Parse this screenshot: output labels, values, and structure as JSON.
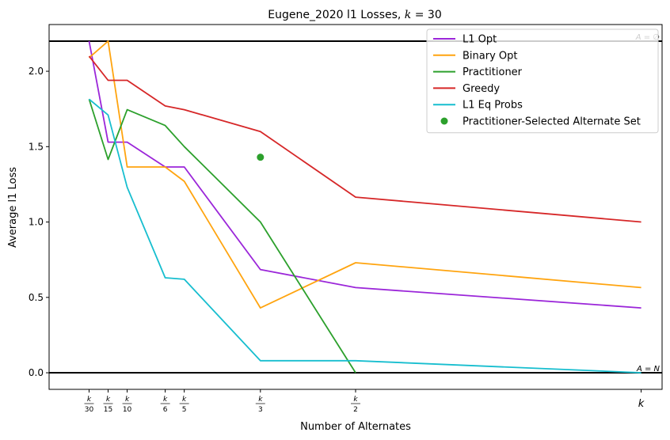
{
  "chart_data": {
    "type": "line",
    "title": "Eugene_2020 l1 Losses, k = 30",
    "title_parts": {
      "prefix": "Eugene_2020 l1 Losses, ",
      "k_symbol": "k",
      "suffix": " = 30"
    },
    "xlabel": "Number of Alternates",
    "ylabel": "Average l1 Loss",
    "xlim": [
      -1.1,
      31.1
    ],
    "ylim": [
      -0.11,
      2.31
    ],
    "x": [
      1,
      2,
      3,
      5,
      6,
      10,
      15,
      30
    ],
    "x_tick_labels": [
      {
        "x": 1,
        "num": "k",
        "den": "30"
      },
      {
        "x": 2,
        "num": "k",
        "den": "15"
      },
      {
        "x": 3,
        "num": "k",
        "den": "10"
      },
      {
        "x": 5,
        "num": "k",
        "den": "6"
      },
      {
        "x": 6,
        "num": "k",
        "den": "5"
      },
      {
        "x": 10,
        "num": "k",
        "den": "3"
      },
      {
        "x": 15,
        "num": "k",
        "den": "2"
      },
      {
        "x": 30,
        "num": "k",
        "den": ""
      }
    ],
    "y_ticks": [
      0.0,
      0.5,
      1.0,
      1.5,
      2.0
    ],
    "y_tick_labels": [
      "0.0",
      "0.5",
      "1.0",
      "1.5",
      "2.0"
    ],
    "series": [
      {
        "name": "L1 Opt",
        "color": "#9b26d9",
        "values": [
          2.2,
          1.53,
          1.53,
          1.365,
          1.365,
          0.685,
          0.565,
          0.43
        ]
      },
      {
        "name": "Binary Opt",
        "color": "#ffa40f",
        "values": [
          2.09,
          2.2,
          1.365,
          1.365,
          1.27,
          0.43,
          0.73,
          0.565
        ]
      },
      {
        "name": "Practitioner",
        "color": "#2ca02c",
        "values": [
          1.815,
          1.415,
          1.745,
          1.64,
          1.5,
          1.0,
          0.0,
          null
        ]
      },
      {
        "name": "Greedy",
        "color": "#d62728",
        "values": [
          2.1,
          1.94,
          1.94,
          1.77,
          1.745,
          1.6,
          1.165,
          1.0
        ]
      },
      {
        "name": "L1 Eq Probs",
        "color": "#17becf",
        "values": [
          1.815,
          1.71,
          1.23,
          0.63,
          0.62,
          0.08,
          0.08,
          0.0
        ]
      }
    ],
    "scatter": {
      "name": "Practitioner-Selected Alternate Set",
      "color": "#2ca02c",
      "x": 10,
      "y": 1.43
    },
    "hlines": [
      {
        "y": 2.2,
        "label": "A = ∅",
        "color": "#000000"
      },
      {
        "y": 0.0,
        "label": "A = N",
        "color": "#000000"
      }
    ],
    "legend_position": "top-right",
    "grid": false
  }
}
